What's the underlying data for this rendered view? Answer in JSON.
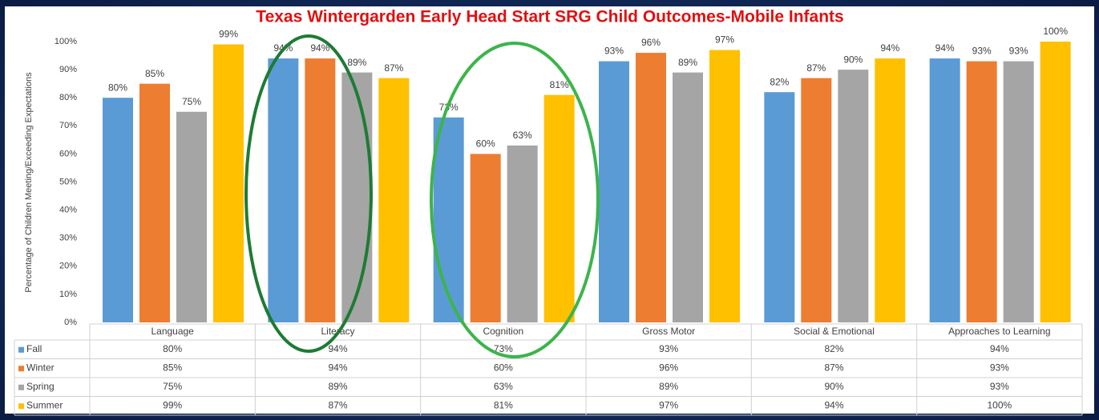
{
  "chart_data": {
    "type": "bar",
    "title": "Texas Wintergarden Early Head Start SRG Child Outcomes-Mobile Infants",
    "y_label": "Percentage of Children Meeting/Exceeding Expectations",
    "categories": [
      "Language",
      "Literacy",
      "Cognition",
      "Gross Motor",
      "Social & Emotional",
      "Approaches to Learning"
    ],
    "series": [
      {
        "name": "Fall",
        "color": "#5b9bd5",
        "values": [
          80,
          94,
          73,
          93,
          82,
          94
        ],
        "value_labels": [
          "80%",
          "94%",
          "73%",
          "93%",
          "82%",
          "94%"
        ]
      },
      {
        "name": "Winter",
        "color": "#ed7d31",
        "values": [
          85,
          94,
          60,
          96,
          87,
          93
        ],
        "value_labels": [
          "85%",
          "94%",
          "60%",
          "96%",
          "87%",
          "93%"
        ]
      },
      {
        "name": "Spring",
        "color": "#a5a5a5",
        "values": [
          75,
          89,
          63,
          89,
          90,
          93
        ],
        "value_labels": [
          "75%",
          "89%",
          "63%",
          "89%",
          "90%",
          "93%"
        ]
      },
      {
        "name": "Summer",
        "color": "#ffc000",
        "values": [
          99,
          87,
          81,
          97,
          94,
          100
        ],
        "value_labels": [
          "99%",
          "87%",
          "81%",
          "97%",
          "94%",
          "100%"
        ]
      }
    ],
    "ylim": [
      0,
      100
    ],
    "yticks": [
      {
        "value": 0,
        "label": "0%"
      },
      {
        "value": 10,
        "label": "10%"
      },
      {
        "value": 20,
        "label": "20%"
      },
      {
        "value": 30,
        "label": "30%"
      },
      {
        "value": 40,
        "label": "40%"
      },
      {
        "value": 50,
        "label": "50%"
      },
      {
        "value": 60,
        "label": "60%"
      },
      {
        "value": 70,
        "label": "70%"
      },
      {
        "value": 80,
        "label": "80%"
      },
      {
        "value": 90,
        "label": "90%"
      },
      {
        "value": 100,
        "label": "100%"
      }
    ],
    "grid": false
  }
}
